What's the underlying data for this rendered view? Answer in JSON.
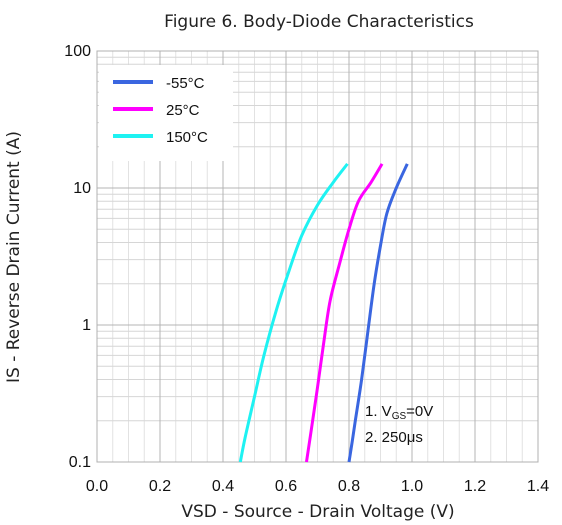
{
  "chart_data": {
    "type": "line",
    "title": "Figure 6. Body-Diode Characteristics",
    "xlabel": "VSD - Source - Drain Voltage (V)",
    "ylabel": "IS - Reverse Drain Current (A)",
    "xlim": [
      0.0,
      1.4
    ],
    "ylim": [
      0.1,
      100
    ],
    "y_scale": "log",
    "x_ticks": [
      "0.0",
      "0.2",
      "0.4",
      "0.6",
      "0.8",
      "1.0",
      "1.2",
      "1.4"
    ],
    "y_ticks": [
      "0.1",
      "1",
      "10",
      "100"
    ],
    "grid": true,
    "legend_position": "top-left",
    "series": [
      {
        "name": "-55°C",
        "color": "#3a66e0",
        "points": [
          [
            0.8,
            0.1
          ],
          [
            0.81,
            0.14
          ],
          [
            0.82,
            0.2
          ],
          [
            0.84,
            0.4
          ],
          [
            0.86,
            0.9
          ],
          [
            0.88,
            2.0
          ],
          [
            0.9,
            3.8
          ],
          [
            0.92,
            6.5
          ],
          [
            0.95,
            10.0
          ],
          [
            0.985,
            15.0
          ]
        ]
      },
      {
        "name": "25°C",
        "color": "#ff00ff",
        "points": [
          [
            0.665,
            0.1
          ],
          [
            0.68,
            0.17
          ],
          [
            0.7,
            0.35
          ],
          [
            0.72,
            0.75
          ],
          [
            0.74,
            1.5
          ],
          [
            0.77,
            2.8
          ],
          [
            0.8,
            5.0
          ],
          [
            0.83,
            8.0
          ],
          [
            0.87,
            11.0
          ],
          [
            0.905,
            15.0
          ]
        ]
      },
      {
        "name": "150°C",
        "color": "#1ef2f2",
        "points": [
          [
            0.455,
            0.1
          ],
          [
            0.47,
            0.15
          ],
          [
            0.5,
            0.3
          ],
          [
            0.53,
            0.6
          ],
          [
            0.57,
            1.3
          ],
          [
            0.61,
            2.5
          ],
          [
            0.65,
            4.5
          ],
          [
            0.7,
            7.5
          ],
          [
            0.75,
            11.0
          ],
          [
            0.795,
            15.0
          ]
        ]
      }
    ],
    "annotations": {
      "line1_prefix": "1. V",
      "line1_sub": "GS",
      "line1_suffix": "=0V",
      "line2": "2. 250μs"
    }
  }
}
